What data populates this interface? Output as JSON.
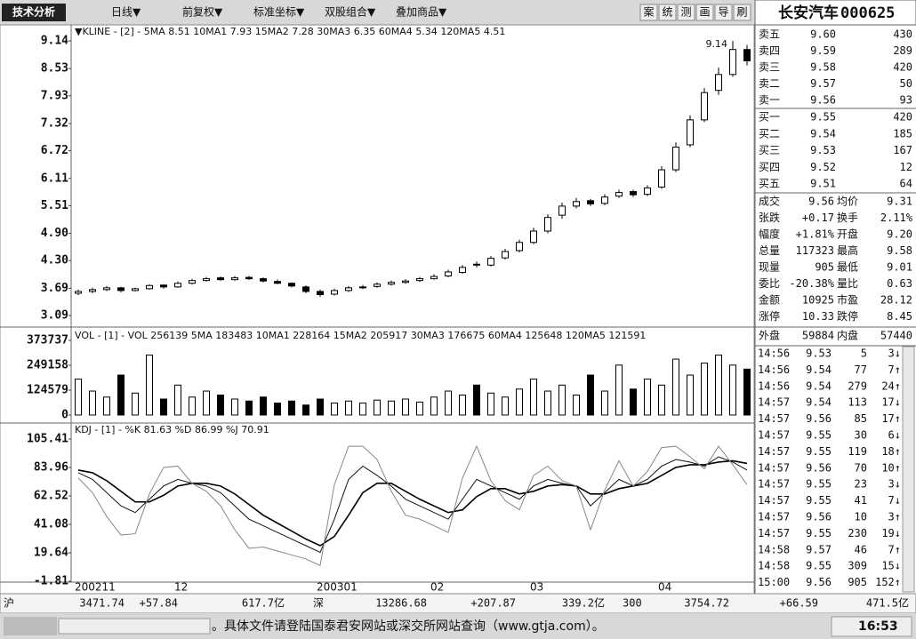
{
  "toolbar": {
    "button": "技术分析",
    "menus": [
      "日线▼",
      "前复权▼",
      "标准坐标▼",
      "双股组合▼",
      "叠加商品▼"
    ],
    "tools": [
      "案",
      "统",
      "测",
      "画",
      "导",
      "刷"
    ],
    "stock": "长安汽车",
    "code": "000625"
  },
  "chart_data": [
    {
      "type": "candlestick",
      "legend": "▼KLINE - [2] -",
      "indicators": [
        {
          "name": "5MA",
          "value": 8.51
        },
        {
          "name": "10MA1",
          "value": 7.93
        },
        {
          "name": "15MA2",
          "value": 7.28
        },
        {
          "name": "30MA3",
          "value": 6.35
        },
        {
          "name": "60MA4",
          "value": 5.34
        },
        {
          "name": "120MA5",
          "value": 4.51
        }
      ],
      "high_label": 9.14,
      "categories": [
        "200211",
        null,
        null,
        null,
        null,
        null,
        null,
        "12",
        null,
        null,
        null,
        null,
        null,
        null,
        null,
        null,
        null,
        "200301",
        null,
        null,
        null,
        null,
        null,
        null,
        null,
        "02",
        null,
        null,
        null,
        null,
        null,
        null,
        "03",
        null,
        null,
        null,
        null,
        null,
        null,
        null,
        null,
        "04",
        null,
        null,
        null,
        null,
        null,
        null
      ],
      "open": [
        3.58,
        3.62,
        3.66,
        3.7,
        3.64,
        3.68,
        3.76,
        3.72,
        3.8,
        3.86,
        3.92,
        3.88,
        3.93,
        3.9,
        3.84,
        3.8,
        3.72,
        3.62,
        3.56,
        3.64,
        3.7,
        3.73,
        3.78,
        3.82,
        3.86,
        3.9,
        3.96,
        4.04,
        4.22,
        4.2,
        4.36,
        4.52,
        4.7,
        4.95,
        5.3,
        5.5,
        5.62,
        5.56,
        5.72,
        5.82,
        5.76,
        5.92,
        6.3,
        6.85,
        7.4,
        8.05,
        8.4,
        8.95
      ],
      "high": [
        3.66,
        3.7,
        3.74,
        3.72,
        3.7,
        3.78,
        3.78,
        3.84,
        3.9,
        3.94,
        3.95,
        3.96,
        3.96,
        3.93,
        3.88,
        3.82,
        3.75,
        3.66,
        3.68,
        3.74,
        3.76,
        3.82,
        3.86,
        3.89,
        3.94,
        4.0,
        4.1,
        4.2,
        4.28,
        4.4,
        4.56,
        4.76,
        5.02,
        5.32,
        5.58,
        5.68,
        5.66,
        5.76,
        5.86,
        5.86,
        5.96,
        6.38,
        6.9,
        7.5,
        8.1,
        8.55,
        9.14,
        9.05
      ],
      "low": [
        3.54,
        3.58,
        3.63,
        3.6,
        3.62,
        3.66,
        3.68,
        3.7,
        3.77,
        3.84,
        3.85,
        3.86,
        3.87,
        3.82,
        3.78,
        3.71,
        3.58,
        3.5,
        3.53,
        3.61,
        3.67,
        3.7,
        3.75,
        3.79,
        3.83,
        3.88,
        3.93,
        4.01,
        4.15,
        4.17,
        4.32,
        4.48,
        4.66,
        4.9,
        5.22,
        5.45,
        5.5,
        5.52,
        5.68,
        5.7,
        5.72,
        5.88,
        6.25,
        6.8,
        7.35,
        7.95,
        8.35,
        8.6
      ],
      "close": [
        3.62,
        3.66,
        3.7,
        3.64,
        3.68,
        3.75,
        3.72,
        3.8,
        3.86,
        3.9,
        3.88,
        3.92,
        3.9,
        3.85,
        3.8,
        3.74,
        3.62,
        3.55,
        3.64,
        3.7,
        3.72,
        3.78,
        3.82,
        3.85,
        3.9,
        3.95,
        4.05,
        4.15,
        4.2,
        4.35,
        4.5,
        4.7,
        4.95,
        5.25,
        5.5,
        5.6,
        5.55,
        5.7,
        5.8,
        5.75,
        5.9,
        6.3,
        6.8,
        7.4,
        8.0,
        8.4,
        8.95,
        8.7
      ],
      "ylim": [
        3.09,
        9.14
      ],
      "yticks": [
        9.14,
        8.53,
        7.93,
        7.32,
        6.72,
        6.11,
        5.51,
        {
          "value": 4.9,
          "label": "4.90"
        },
        {
          "value": 4.3,
          "label": "4.30"
        },
        3.69,
        3.09
      ]
    },
    {
      "type": "bar",
      "legend": "VOL - [1] -",
      "indicators": [
        {
          "name": "VOL",
          "value": 256139
        },
        {
          "name": "5MA",
          "value": 183483
        },
        {
          "name": "10MA1",
          "value": 228164
        },
        {
          "name": "15MA2",
          "value": 205917
        },
        {
          "name": "30MA3",
          "value": 176675
        },
        {
          "name": "60MA4",
          "value": 125648
        },
        {
          "name": "120MA5",
          "value": 121591
        }
      ],
      "values": [
        180000,
        120000,
        90000,
        200000,
        110000,
        300000,
        80000,
        150000,
        90000,
        120000,
        100000,
        80000,
        70000,
        90000,
        60000,
        70000,
        50000,
        80000,
        60000,
        70000,
        60000,
        75000,
        70000,
        80000,
        65000,
        90000,
        120000,
        100000,
        150000,
        110000,
        90000,
        130000,
        180000,
        120000,
        150000,
        100000,
        200000,
        120000,
        250000,
        130000,
        180000,
        150000,
        280000,
        200000,
        260000,
        300000,
        250000,
        230000
      ],
      "ylim": [
        0,
        373737
      ],
      "yticks": [
        373737,
        249158,
        124579,
        0
      ]
    },
    {
      "type": "line",
      "legend": "KDJ - [1] -",
      "series": [
        {
          "name": "%K",
          "latest": 81.63,
          "color": "#111",
          "values": [
            80,
            75,
            65,
            55,
            50,
            60,
            70,
            75,
            72,
            70,
            65,
            55,
            45,
            40,
            35,
            30,
            25,
            20,
            45,
            75,
            85,
            78,
            70,
            60,
            55,
            50,
            45,
            60,
            75,
            70,
            65,
            60,
            70,
            75,
            72,
            70,
            55,
            65,
            75,
            70,
            75,
            85,
            90,
            88,
            85,
            92,
            88,
            82
          ]
        },
        {
          "name": "%D",
          "latest": 86.99,
          "color": "#000",
          "values": [
            82,
            80,
            74,
            66,
            58,
            58,
            63,
            70,
            72,
            72,
            70,
            64,
            56,
            48,
            42,
            36,
            30,
            25,
            32,
            48,
            65,
            72,
            72,
            66,
            60,
            55,
            50,
            52,
            62,
            68,
            68,
            64,
            66,
            70,
            71,
            70,
            64,
            64,
            68,
            70,
            72,
            78,
            84,
            86,
            86,
            88,
            89,
            87
          ]
        },
        {
          "name": "%J",
          "latest": 70.91,
          "color": "#888",
          "values": [
            76,
            65,
            47,
            33,
            34,
            64,
            84,
            85,
            72,
            66,
            55,
            37,
            23,
            24,
            21,
            18,
            15,
            10,
            71,
            100,
            100,
            90,
            66,
            48,
            45,
            40,
            35,
            76,
            100,
            74,
            59,
            52,
            78,
            85,
            74,
            70,
            37,
            67,
            89,
            70,
            81,
            99,
            100,
            92,
            83,
            100,
            86,
            71
          ]
        }
      ],
      "ylim": [
        -1.81,
        105.41
      ],
      "yticks": [
        105.41,
        83.96,
        62.52,
        41.08,
        19.64,
        -1.81
      ]
    }
  ],
  "quote": {
    "sell": [
      [
        "卖五",
        "9.60",
        "430"
      ],
      [
        "卖四",
        "9.59",
        "289"
      ],
      [
        "卖三",
        "9.58",
        "420"
      ],
      [
        "卖二",
        "9.57",
        "50"
      ],
      [
        "卖一",
        "9.56",
        "93"
      ]
    ],
    "buy": [
      [
        "买一",
        "9.55",
        "420"
      ],
      [
        "买二",
        "9.54",
        "185"
      ],
      [
        "买三",
        "9.53",
        "167"
      ],
      [
        "买四",
        "9.52",
        "12"
      ],
      [
        "买五",
        "9.51",
        "64"
      ]
    ],
    "stats": [
      [
        "成交",
        "9.56",
        "均价",
        "9.31"
      ],
      [
        "张跌",
        "+0.17",
        "换手",
        "2.11%"
      ],
      [
        "幅度",
        "+1.81%",
        "开盘",
        "9.20"
      ],
      [
        "总量",
        "117323",
        "最高",
        "9.58"
      ],
      [
        "现量",
        "905",
        "最低",
        "9.01"
      ],
      [
        "委比",
        "-20.38%",
        "量比",
        "0.63"
      ],
      [
        "金额",
        "10925",
        "市盈",
        "28.12"
      ],
      [
        "涨停",
        "10.33",
        "跌停",
        "8.45"
      ]
    ],
    "outer": [
      "外盘",
      "59884",
      "内盘",
      "57440"
    ],
    "ticks": [
      [
        "14:56",
        "9.53",
        "5",
        "3↓"
      ],
      [
        "14:56",
        "9.54",
        "77",
        "7↑"
      ],
      [
        "14:56",
        "9.54",
        "279",
        "24↑"
      ],
      [
        "14:57",
        "9.54",
        "113",
        "17↓"
      ],
      [
        "14:57",
        "9.56",
        "85",
        "17↑"
      ],
      [
        "14:57",
        "9.55",
        "30",
        "6↓"
      ],
      [
        "14:57",
        "9.55",
        "119",
        "18↑"
      ],
      [
        "14:57",
        "9.56",
        "70",
        "10↑"
      ],
      [
        "14:57",
        "9.55",
        "23",
        "3↓"
      ],
      [
        "14:57",
        "9.55",
        "41",
        "7↓"
      ],
      [
        "14:57",
        "9.56",
        "10",
        "3↑"
      ],
      [
        "14:57",
        "9.55",
        "230",
        "19↓"
      ],
      [
        "14:58",
        "9.57",
        "46",
        "7↑"
      ],
      [
        "14:58",
        "9.55",
        "309",
        "15↓"
      ],
      [
        "15:00",
        "9.56",
        "905",
        "152↑"
      ]
    ]
  },
  "status": [
    "沪",
    "3471.74",
    "+57.84",
    "617.7亿",
    "深",
    "13286.68",
    "+207.87",
    "339.2亿",
    "300",
    "3754.72",
    "+66.59",
    "471.5亿"
  ],
  "footer": {
    "notice": "。具体文件请登陆国泰君安网站或深交所网站查询（www.gtja.com）。",
    "time": "16:53"
  }
}
